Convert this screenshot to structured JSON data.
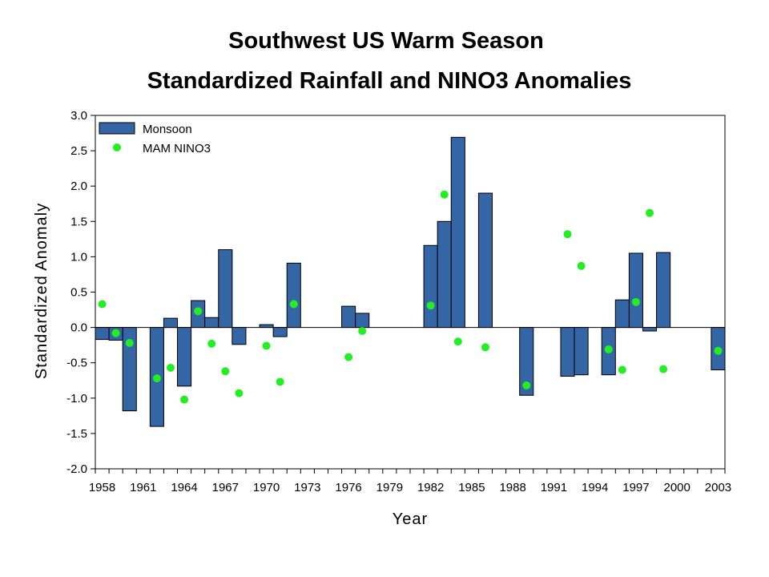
{
  "chart_data": {
    "type": "bar",
    "title": [
      "Southwest US Warm Season",
      "Standardized Rainfall and NINO3 Anomalies"
    ],
    "xlabel": "Year",
    "ylabel": "Standardized Anomaly",
    "xlim": [
      1958,
      2003
    ],
    "ylim": [
      -2.0,
      3.0
    ],
    "yticks": [
      "3.0",
      "2.5",
      "2.0",
      "1.5",
      "1.0",
      "0.5",
      "0.0",
      "-0.5",
      "-1.0",
      "-1.5",
      "-2.0"
    ],
    "xticks": [
      "1958",
      "1961",
      "1964",
      "1967",
      "1970",
      "1973",
      "1976",
      "1979",
      "1982",
      "1985",
      "1988",
      "1991",
      "1994",
      "1997",
      "2000",
      "2003"
    ],
    "grid": false,
    "legend_position": "top-left",
    "colors": {
      "bar": "#3466a6",
      "bar_edge": "#000000",
      "dot": "#22ee22"
    },
    "series": [
      {
        "name": "Monsoon",
        "type": "bar",
        "points": [
          [
            1958,
            -0.17
          ],
          [
            1959,
            -0.18
          ],
          [
            1960,
            -1.18
          ],
          [
            1962,
            -1.4
          ],
          [
            1963,
            0.13
          ],
          [
            1964,
            -0.83
          ],
          [
            1965,
            0.38
          ],
          [
            1966,
            0.14
          ],
          [
            1967,
            1.1
          ],
          [
            1968,
            -0.24
          ],
          [
            1970,
            0.04
          ],
          [
            1971,
            -0.13
          ],
          [
            1972,
            0.91
          ],
          [
            1976,
            0.3
          ],
          [
            1977,
            0.2
          ],
          [
            1982,
            1.16
          ],
          [
            1983,
            1.5
          ],
          [
            1984,
            2.69
          ],
          [
            1986,
            1.9
          ],
          [
            1989,
            -0.96
          ],
          [
            1992,
            -0.69
          ],
          [
            1993,
            -0.67
          ],
          [
            1995,
            -0.67
          ],
          [
            1996,
            0.39
          ],
          [
            1997,
            1.05
          ],
          [
            1998,
            -0.05
          ],
          [
            1999,
            1.06
          ],
          [
            2003,
            -0.6
          ]
        ]
      },
      {
        "name": "MAM NINO3",
        "type": "scatter",
        "points": [
          [
            1958,
            0.33
          ],
          [
            1959,
            -0.08
          ],
          [
            1960,
            -0.22
          ],
          [
            1962,
            -0.72
          ],
          [
            1963,
            -0.57
          ],
          [
            1964,
            -1.02
          ],
          [
            1965,
            0.23
          ],
          [
            1966,
            -0.23
          ],
          [
            1967,
            -0.62
          ],
          [
            1968,
            -0.93
          ],
          [
            1970,
            -0.26
          ],
          [
            1971,
            -0.77
          ],
          [
            1972,
            0.33
          ],
          [
            1976,
            -0.42
          ],
          [
            1977,
            -0.05
          ],
          [
            1982,
            0.31
          ],
          [
            1983,
            1.88
          ],
          [
            1984,
            -0.2
          ],
          [
            1986,
            -0.28
          ],
          [
            1989,
            -0.82
          ],
          [
            1992,
            1.32
          ],
          [
            1993,
            0.87
          ],
          [
            1995,
            -0.31
          ],
          [
            1996,
            -0.6
          ],
          [
            1997,
            0.36
          ],
          [
            1998,
            1.62
          ],
          [
            1999,
            -0.59
          ],
          [
            2003,
            -0.33
          ]
        ]
      }
    ]
  }
}
